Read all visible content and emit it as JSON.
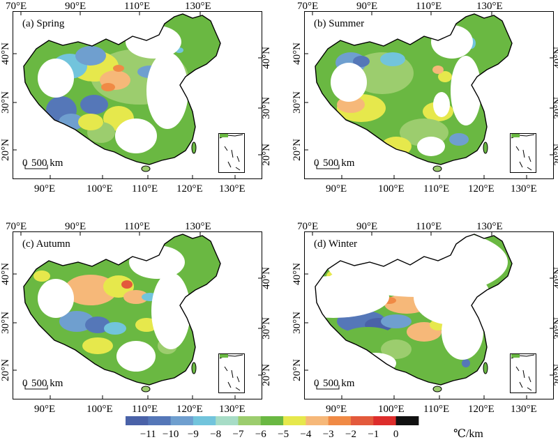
{
  "panels": [
    {
      "id": "spring",
      "label": "(a) Spring",
      "top_axis": [
        "70°E",
        "90°E",
        "110°E",
        "130°E"
      ],
      "bottom_axis": [
        "90°E",
        "100°E",
        "110°E",
        "120°E",
        "130°E"
      ],
      "left_axis": [
        "40°N",
        "30°N",
        "20°N"
      ],
      "right_axis": [
        "40°N",
        "30°N",
        "20°N"
      ],
      "scale_bar": {
        "zero": "0",
        "label": "500 km"
      }
    },
    {
      "id": "summer",
      "label": "(b) Summer",
      "top_axis": [
        "70°E",
        "90°E",
        "110°E",
        "130°E"
      ],
      "bottom_axis": [
        "90°E",
        "100°E",
        "110°E",
        "120°E",
        "130°E"
      ],
      "left_axis": [
        "40°N",
        "30°N",
        "20°N"
      ],
      "right_axis": [
        "40°N",
        "30°N",
        "20°N"
      ],
      "scale_bar": {
        "zero": "0",
        "label": "500 km"
      }
    },
    {
      "id": "autumn",
      "label": "(c) Autumn",
      "top_axis": [
        "70°E",
        "90°E",
        "110°E",
        "130°E"
      ],
      "bottom_axis": [
        "90°E",
        "100°E",
        "110°E",
        "120°E",
        "130°E"
      ],
      "left_axis": [
        "40°N",
        "30°N",
        "20°N"
      ],
      "right_axis": [
        "40°N",
        "30°N",
        "20°N"
      ],
      "scale_bar": {
        "zero": "0",
        "label": "500 km"
      }
    },
    {
      "id": "winter",
      "label": "(d) Winter",
      "top_axis": [
        "70°E",
        "90°E",
        "110°E",
        "130°E"
      ],
      "bottom_axis": [
        "90°E",
        "100°E",
        "110°E",
        "120°E",
        "130°E"
      ],
      "left_axis": [
        "40°N",
        "30°N",
        "20°N"
      ],
      "right_axis": [
        "40°N",
        "30°N",
        "20°N"
      ],
      "scale_bar": {
        "zero": "0",
        "label": "500 km"
      }
    }
  ],
  "legend": {
    "ticks": [
      "−11",
      "−10",
      "−9",
      "−8",
      "−7",
      "−6",
      "−5",
      "−4",
      "−3",
      "−2",
      "−1",
      "0"
    ],
    "unit": "℃/km",
    "colors": [
      "#4a62a8",
      "#5577b8",
      "#6f9fcf",
      "#72c4dc",
      "#a7dcc6",
      "#9ccd6e",
      "#6ab842",
      "#e6e84c",
      "#f6b879",
      "#f08a45",
      "#e35a3c",
      "#dd2d2b",
      "#111111"
    ]
  },
  "colors": {
    "c11": "#4a62a8",
    "c10": "#5577b8",
    "c9": "#6f9fcf",
    "c8": "#72c4dc",
    "c7": "#a7dcc6",
    "c6": "#9ccd6e",
    "c5": "#6ab842",
    "c4": "#e6e84c",
    "c3": "#f6b879",
    "c2": "#f08a45",
    "c1": "#e35a3c",
    "c0": "#dd2d2b"
  }
}
